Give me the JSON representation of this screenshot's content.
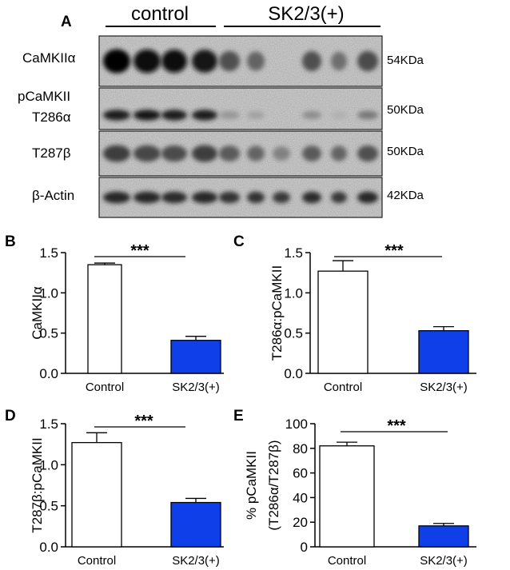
{
  "blot": {
    "panel_letter": "A",
    "groups": [
      {
        "label": "control",
        "lanes": 4
      },
      {
        "label": "SK2/3(+)",
        "lanes": 6
      }
    ],
    "rows": [
      {
        "label": "CaMKIIα",
        "size": "54KDa",
        "intensity": [
          1.0,
          0.95,
          0.92,
          0.9,
          0.6,
          0.5,
          0.0,
          0.6,
          0.45,
          0.62
        ]
      },
      {
        "label_line1": "pCaMKII",
        "label_line2": "T286α",
        "size": "50KDa",
        "intensity": [
          0.85,
          0.88,
          0.85,
          0.85,
          0.25,
          0.2,
          0.0,
          0.3,
          0.12,
          0.4
        ]
      },
      {
        "label": "T287β",
        "size": "50KDa",
        "intensity": [
          0.7,
          0.65,
          0.62,
          0.7,
          0.55,
          0.5,
          0.35,
          0.55,
          0.5,
          0.6
        ]
      },
      {
        "label": "β-Actin",
        "size": "42KDa",
        "intensity": [
          0.8,
          0.8,
          0.78,
          0.8,
          0.75,
          0.75,
          0.72,
          0.78,
          0.72,
          0.8
        ]
      }
    ]
  },
  "chart_data": [
    {
      "panel": "B",
      "type": "bar",
      "categories": [
        "Control",
        "SK2/3(+)"
      ],
      "values": [
        1.35,
        0.41
      ],
      "errors": [
        0.02,
        0.05
      ],
      "ylabel": "CaMKIIα",
      "ylim": [
        0,
        1.5
      ],
      "yticks": [
        "0.0",
        "0.5",
        "1.0",
        "1.5"
      ],
      "significance": "***",
      "colors": [
        "#ffffff",
        "#0f3fe8"
      ]
    },
    {
      "panel": "C",
      "type": "bar",
      "categories": [
        "Control",
        "SK2/3(+)"
      ],
      "values": [
        1.27,
        0.53
      ],
      "errors": [
        0.13,
        0.05
      ],
      "ylabel": "T286α:pCaMKII",
      "ylim": [
        0,
        1.5
      ],
      "yticks": [
        "0.0",
        "0.5",
        "1.0",
        "1.5"
      ],
      "significance": "***",
      "colors": [
        "#ffffff",
        "#0f3fe8"
      ]
    },
    {
      "panel": "D",
      "type": "bar",
      "categories": [
        "Control",
        "SK2/3(+)"
      ],
      "values": [
        1.27,
        0.54
      ],
      "errors": [
        0.12,
        0.05
      ],
      "ylabel": "T287β:pCaMKII",
      "ylim": [
        0,
        1.5
      ],
      "yticks": [
        "0.0",
        "0.5",
        "1.0",
        "1.5"
      ],
      "significance": "***",
      "colors": [
        "#ffffff",
        "#0f3fe8"
      ]
    },
    {
      "panel": "E",
      "type": "bar",
      "categories": [
        "Control",
        "SK2/3(+)"
      ],
      "values": [
        82,
        17
      ],
      "errors": [
        3,
        2
      ],
      "ylabel_line1": "% pCaMKII",
      "ylabel_line2": "(T286α/T287β)",
      "ylim": [
        0,
        100
      ],
      "yticks": [
        "0",
        "20",
        "40",
        "60",
        "80",
        "100"
      ],
      "significance": "***",
      "colors": [
        "#ffffff",
        "#0f3fe8"
      ]
    }
  ]
}
